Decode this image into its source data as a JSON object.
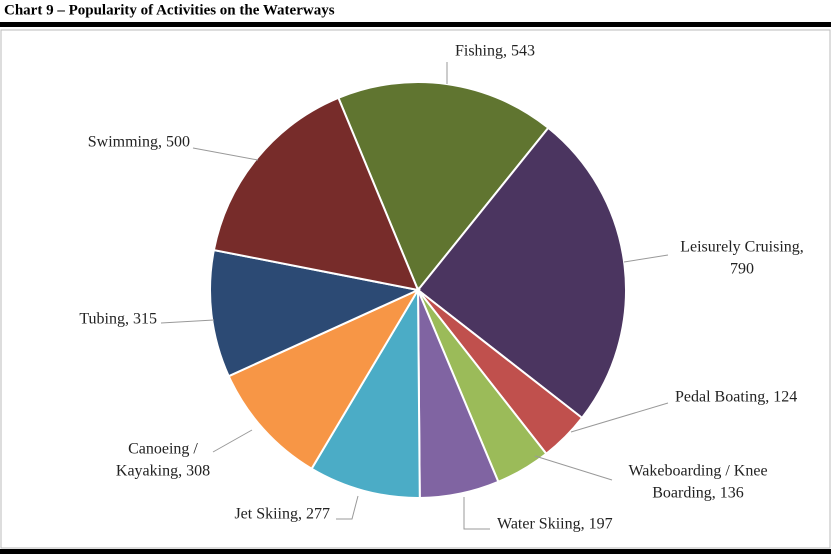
{
  "chart_data": {
    "type": "pie",
    "title": "Chart 9 – Popularity of Activities on the Waterways",
    "values": [
      543,
      790,
      124,
      136,
      197,
      277,
      308,
      315,
      500
    ],
    "value_labels": [
      [
        "Fishing, 543"
      ],
      [
        "Leisurely Cruising,",
        "790"
      ],
      [
        "Pedal Boating, 124"
      ],
      [
        "Wakeboarding / Knee",
        "Boarding, 136"
      ],
      [
        "Water Skiing, 197"
      ],
      [
        "Jet Skiing, 277"
      ],
      [
        "Canoeing /",
        "Kayaking, 308"
      ],
      [
        "Tubing, 315"
      ],
      [
        "Swimming, 500"
      ]
    ],
    "colors": [
      "#607530",
      "#4b3560",
      "#c0504d",
      "#9bbb59",
      "#8064a2",
      "#4bacc6",
      "#f79646",
      "#2c4a74",
      "#772c2a"
    ]
  }
}
